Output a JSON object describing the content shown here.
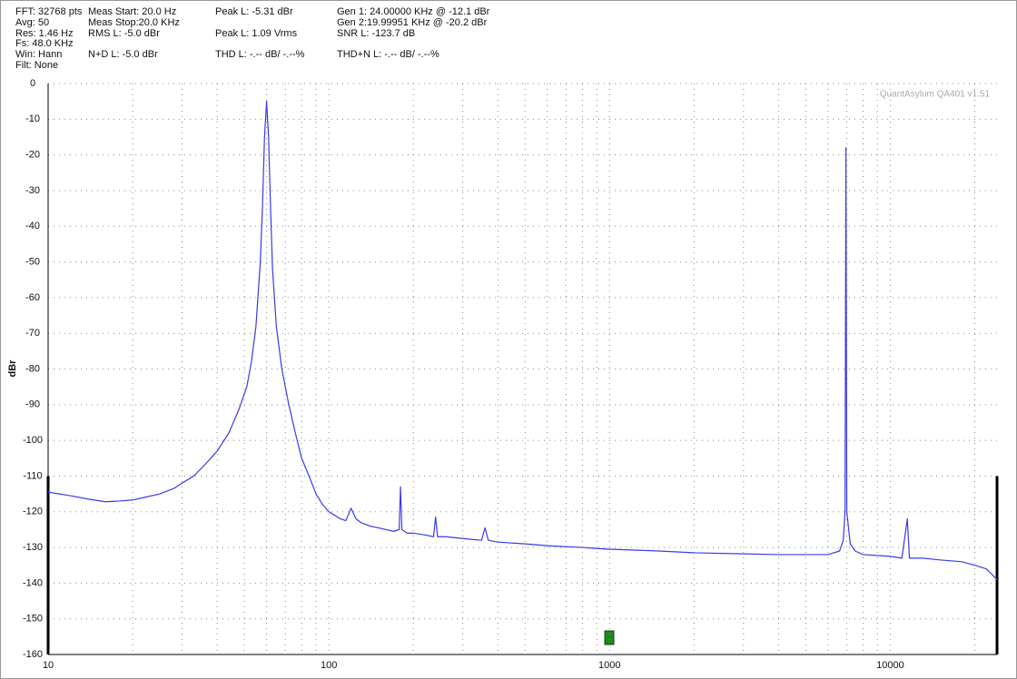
{
  "chart_data": {
    "type": "line",
    "stats": [
      "FFT: 32768 pts",
      "Avg: 50",
      "Res: 1.46 Hz",
      "Fs: 48.0 KHz",
      "Win: Hann",
      "Filt: None",
      "Meas Start: 20.0 Hz",
      "Meas Stop:20.0 KHz",
      "RMS L: -5.0 dBr",
      "N+D L: -5.0 dBr",
      "Peak L: -5.31 dBr",
      "Peak L: 1.09 Vrms",
      "THD L: -.-- dB/ -.--%",
      "Gen 1: 24.00000 KHz @ -12.1  dBr",
      "Gen 2:19.99951 KHz @ -20.2  dBr",
      "SNR L: -123.7 dB",
      "THD+N L: -.-- dB/ -.--%"
    ],
    "watermark": "QuantAsylum QA401 v1.51",
    "ylabel": "dBr",
    "xscale": "log",
    "grid": true,
    "xlim": [
      10,
      24000
    ],
    "ylim": [
      -160,
      0
    ],
    "xticks": [
      10,
      100,
      1000,
      10000
    ],
    "xminor": [
      20,
      30,
      40,
      50,
      60,
      70,
      80,
      90,
      200,
      300,
      400,
      500,
      600,
      700,
      800,
      900,
      2000,
      3000,
      4000,
      5000,
      6000,
      7000,
      8000,
      9000,
      20000
    ],
    "yticks": [
      0,
      -10,
      -20,
      -30,
      -40,
      -50,
      -60,
      -70,
      -80,
      -90,
      -100,
      -110,
      -120,
      -130,
      -140,
      -150,
      -160
    ],
    "series": [
      {
        "color": "#3a3aee",
        "x": [
          10,
          12,
          14,
          16,
          18,
          20,
          22,
          25,
          28,
          30,
          33,
          36,
          40,
          44,
          48,
          51,
          53,
          55,
          57,
          58,
          59,
          60,
          61,
          62,
          63,
          65,
          68,
          72,
          76,
          80,
          85,
          90,
          95,
          100,
          105,
          110,
          115,
          120,
          125,
          130,
          140,
          150,
          160,
          170,
          178,
          180,
          182,
          190,
          200,
          220,
          236,
          240,
          244,
          260,
          300,
          350,
          360,
          370,
          400,
          500,
          600,
          700,
          800,
          900,
          1000,
          1500,
          2000,
          3000,
          4000,
          5000,
          6000,
          6600,
          6800,
          6900,
          6950,
          7000,
          7200,
          7500,
          8000,
          10000,
          11000,
          11500,
          11700,
          13000,
          15000,
          18000,
          20000,
          22000,
          24000
        ],
        "values": [
          -114.5,
          -115.5,
          -116.5,
          -117.2,
          -117,
          -116.7,
          -116,
          -115,
          -113.5,
          -112,
          -110,
          -107,
          -103,
          -98,
          -91,
          -85,
          -78,
          -68,
          -50,
          -35,
          -15,
          -5,
          -15,
          -35,
          -52,
          -68,
          -80,
          -90,
          -98,
          -105,
          -110,
          -115,
          -118,
          -120,
          -121,
          -122,
          -122.5,
          -119,
          -122,
          -123,
          -124,
          -124.5,
          -125,
          -125.5,
          -125,
          -113,
          -125,
          -126,
          -126,
          -126.5,
          -127,
          -121.5,
          -127,
          -127,
          -127.5,
          -128,
          -124.5,
          -128,
          -128.5,
          -129,
          -129.5,
          -129.8,
          -130,
          -130.3,
          -130.5,
          -131,
          -131.5,
          -131.8,
          -132,
          -132,
          -132,
          -131,
          -128,
          -120,
          -18,
          -120,
          -129,
          -131,
          -132,
          -132.5,
          -133,
          -122,
          -133,
          -133,
          -133.5,
          -134,
          -135,
          -136,
          -139
        ]
      }
    ]
  }
}
